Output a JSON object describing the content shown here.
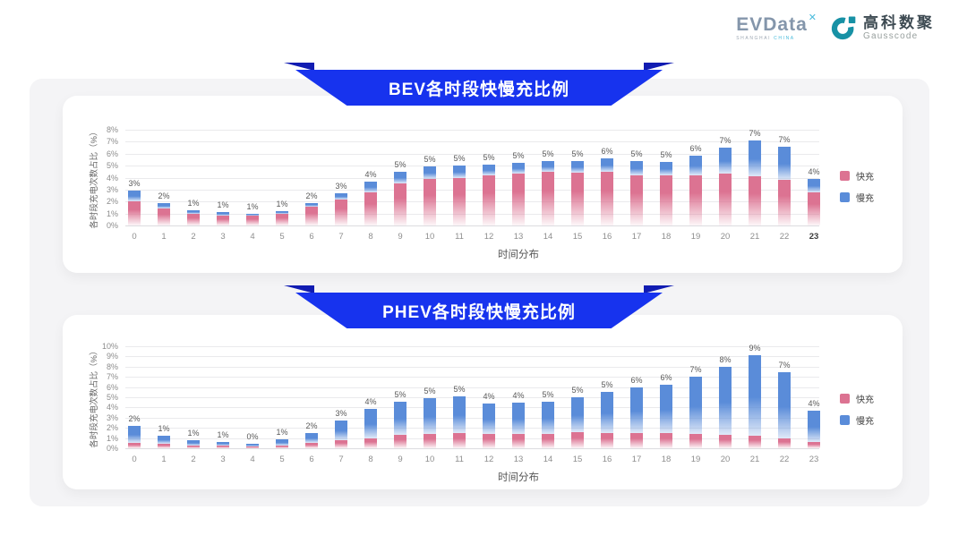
{
  "header": {
    "evdata": {
      "name": "EVData",
      "sup": "✕",
      "tagline_left": "SHANGHAI",
      "tagline_right": "CHINA"
    },
    "gausscode": {
      "cn": "高科数聚",
      "en": "Gausscode"
    }
  },
  "colors": {
    "fast": "#DC7392",
    "slow": "#5A8CD9",
    "banner": "#1733EE",
    "banner_fold": "#111CB2",
    "logo_teal": "#1791A5"
  },
  "chart_data": [
    {
      "id": "bev",
      "type": "bar",
      "stacked": true,
      "title": "BEV各时段快慢充比例",
      "xlabel": "时间分布",
      "ylabel": "各时段充电次数占比（%）",
      "categories": [
        "0",
        "1",
        "2",
        "3",
        "4",
        "5",
        "6",
        "7",
        "8",
        "9",
        "10",
        "11",
        "12",
        "13",
        "14",
        "15",
        "16",
        "17",
        "18",
        "19",
        "20",
        "21",
        "22",
        "23"
      ],
      "series": [
        {
          "name": "快充",
          "color": "#DC7392",
          "values": [
            2.0,
            1.4,
            1.0,
            0.85,
            0.85,
            1.0,
            1.6,
            2.2,
            2.8,
            3.5,
            3.9,
            4.0,
            4.2,
            4.3,
            4.5,
            4.4,
            4.5,
            4.2,
            4.2,
            4.2,
            4.3,
            4.1,
            3.8,
            2.8
          ]
        },
        {
          "name": "慢充",
          "color": "#5A8CD9",
          "values": [
            0.9,
            0.45,
            0.3,
            0.25,
            0.1,
            0.2,
            0.3,
            0.5,
            0.85,
            1.0,
            1.0,
            1.0,
            0.9,
            0.9,
            0.9,
            1.0,
            1.1,
            1.2,
            1.1,
            1.6,
            2.2,
            3.0,
            2.8,
            1.1
          ]
        }
      ],
      "bar_labels": [
        "3%",
        "2%",
        "1%",
        "1%",
        "1%",
        "1%",
        "2%",
        "3%",
        "4%",
        "5%",
        "5%",
        "5%",
        "5%",
        "5%",
        "5%",
        "5%",
        "6%",
        "5%",
        "5%",
        "6%",
        "7%",
        "7%",
        "7%",
        "4%"
      ],
      "ylim": [
        0,
        8
      ],
      "yticks": [
        "0%",
        "1%",
        "2%",
        "3%",
        "4%",
        "5%",
        "6%",
        "7%",
        "8%"
      ],
      "grid": true,
      "legend_position": "right",
      "emphasized_xtick": "23"
    },
    {
      "id": "phev",
      "type": "bar",
      "stacked": true,
      "title": "PHEV各时段快慢充比例",
      "xlabel": "时间分布",
      "ylabel": "各时段充电次数占比（%）",
      "categories": [
        "0",
        "1",
        "2",
        "3",
        "4",
        "5",
        "6",
        "7",
        "8",
        "9",
        "10",
        "11",
        "12",
        "13",
        "14",
        "15",
        "16",
        "17",
        "18",
        "19",
        "20",
        "21",
        "22",
        "23"
      ],
      "series": [
        {
          "name": "快充",
          "color": "#DC7392",
          "values": [
            0.5,
            0.4,
            0.3,
            0.25,
            0.2,
            0.3,
            0.55,
            0.75,
            1.0,
            1.3,
            1.4,
            1.5,
            1.4,
            1.4,
            1.4,
            1.6,
            1.5,
            1.5,
            1.5,
            1.4,
            1.3,
            1.2,
            1.0,
            0.6
          ]
        },
        {
          "name": "慢充",
          "color": "#5A8CD9",
          "values": [
            1.7,
            0.8,
            0.5,
            0.35,
            0.25,
            0.55,
            0.95,
            2.0,
            2.9,
            3.3,
            3.5,
            3.6,
            3.0,
            3.1,
            3.2,
            3.4,
            4.0,
            4.5,
            4.7,
            5.6,
            6.7,
            7.9,
            6.5,
            3.1
          ]
        }
      ],
      "bar_labels": [
        "2%",
        "1%",
        "1%",
        "1%",
        "0%",
        "1%",
        "2%",
        "3%",
        "4%",
        "5%",
        "5%",
        "5%",
        "4%",
        "4%",
        "5%",
        "5%",
        "5%",
        "6%",
        "6%",
        "7%",
        "8%",
        "9%",
        "7%",
        "4%"
      ],
      "ylim": [
        0,
        10
      ],
      "yticks": [
        "0%",
        "1%",
        "2%",
        "3%",
        "4%",
        "5%",
        "6%",
        "7%",
        "8%",
        "9%",
        "10%"
      ],
      "grid": true,
      "legend_position": "right",
      "emphasized_xtick": null
    }
  ]
}
